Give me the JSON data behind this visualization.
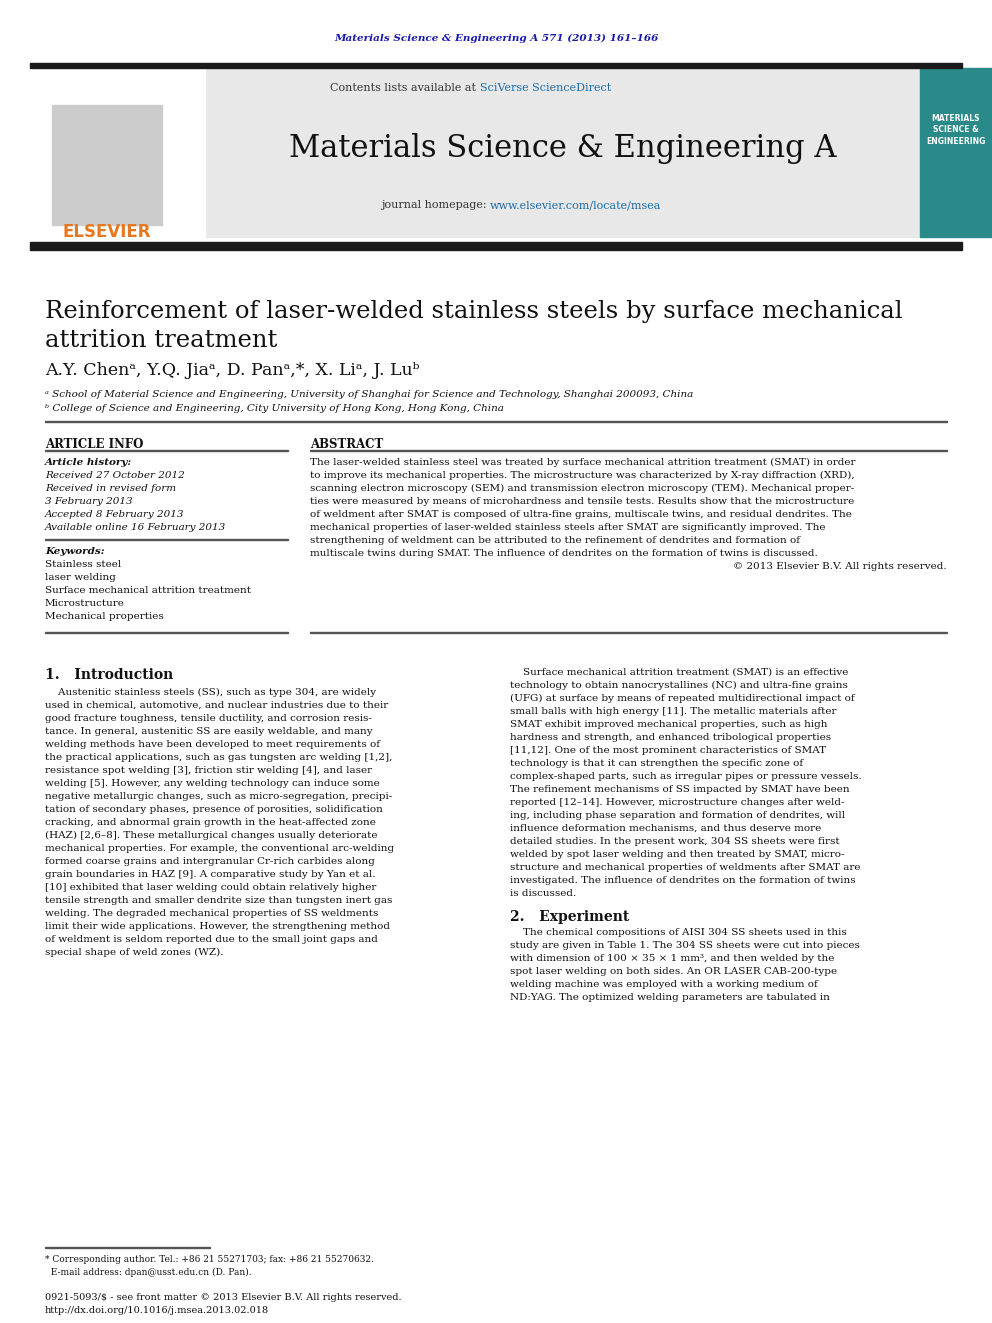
{
  "page_bg": "#ffffff",
  "header_journal_text": "Materials Science & Engineering A 571 (2013) 161–166",
  "header_journal_color": "#1a1aaa",
  "banner_bg": "#e8e8e8",
  "banner_sciverse_text": "SciVerse ScienceDirect",
  "banner_journal_name": "Materials Science & Engineering A",
  "blue_link_color": "#1a6caa",
  "title_main": "Reinforcement of laser-welded stainless steels by surface mechanical\nattrition treatment",
  "authors": "A.Y. Chenᵃ, Y.Q. Jiaᵃ, D. Panᵃ,*, X. Liᵃ, J. Luᵇ",
  "affil_a": "ᵃ School of Material Science and Engineering, University of Shanghai for Science and Technology, Shanghai 200093, China",
  "affil_b": "ᵇ College of Science and Engineering, City University of Hong Kong, Hong Kong, China",
  "section_article_info": "ARTICLE INFO",
  "section_abstract": "ABSTRACT",
  "article_history_label": "Article history:",
  "history_lines": [
    "Received 27 October 2012",
    "Received in revised form",
    "3 February 2013",
    "Accepted 8 February 2013",
    "Available online 16 February 2013"
  ],
  "keywords_label": "Keywords:",
  "keywords": [
    "Stainless steel",
    "laser welding",
    "Surface mechanical attrition treatment",
    "Microstructure",
    "Mechanical properties"
  ],
  "abstract_lines": [
    "The laser-welded stainless steel was treated by surface mechanical attrition treatment (SMAT) in order",
    "to improve its mechanical properties. The microstructure was characterized by X-ray diffraction (XRD),",
    "scanning electron microscopy (SEM) and transmission electron microscopy (TEM). Mechanical proper-",
    "ties were measured by means of microhardness and tensile tests. Results show that the microstructure",
    "of weldment after SMAT is composed of ultra-fine grains, multiscale twins, and residual dendrites. The",
    "mechanical properties of laser-welded stainless steels after SMAT are significantly improved. The",
    "strengthening of weldment can be attributed to the refinement of dendrites and formation of",
    "multiscale twins during SMAT. The influence of dendrites on the formation of twins is discussed.",
    "© 2013 Elsevier B.V. All rights reserved."
  ],
  "intro_heading": "1.   Introduction",
  "intro_left_lines": [
    "    Austenitic stainless steels (SS), such as type 304, are widely",
    "used in chemical, automotive, and nuclear industries due to their",
    "good fracture toughness, tensile ductility, and corrosion resis-",
    "tance. In general, austenitic SS are easily weldable, and many",
    "welding methods have been developed to meet requirements of",
    "the practical applications, such as gas tungsten arc welding [1,2],",
    "resistance spot welding [3], friction stir welding [4], and laser",
    "welding [5]. However, any welding technology can induce some",
    "negative metallurgic changes, such as micro-segregation, precipi-",
    "tation of secondary phases, presence of porosities, solidification",
    "cracking, and abnormal grain growth in the heat-affected zone",
    "(HAZ) [2,6–8]. These metallurgical changes usually deteriorate",
    "mechanical properties. For example, the conventional arc-welding",
    "formed coarse grains and intergranular Cr-rich carbides along",
    "grain boundaries in HAZ [9]. A comparative study by Yan et al.",
    "[10] exhibited that laser welding could obtain relatively higher",
    "tensile strength and smaller dendrite size than tungsten inert gas",
    "welding. The degraded mechanical properties of SS weldments",
    "limit their wide applications. However, the strengthening method",
    "of weldment is seldom reported due to the small joint gaps and",
    "special shape of weld zones (WZ)."
  ],
  "intro_right_lines": [
    "    Surface mechanical attrition treatment (SMAT) is an effective",
    "technology to obtain nanocrystallines (NC) and ultra-fine grains",
    "(UFG) at surface by means of repeated multidirectional impact of",
    "small balls with high energy [11]. The metallic materials after",
    "SMAT exhibit improved mechanical properties, such as high",
    "hardness and strength, and enhanced tribological properties",
    "[11,12]. One of the most prominent characteristics of SMAT",
    "technology is that it can strengthen the specific zone of",
    "complex-shaped parts, such as irregular pipes or pressure vessels.",
    "The refinement mechanisms of SS impacted by SMAT have been",
    "reported [12–14]. However, microstructure changes after weld-",
    "ing, including phase separation and formation of dendrites, will",
    "influence deformation mechanisms, and thus deserve more",
    "detailed studies. In the present work, 304 SS sheets were first",
    "welded by spot laser welding and then treated by SMAT, micro-",
    "structure and mechanical properties of weldments after SMAT are",
    "investigated. The influence of dendrites on the formation of twins",
    "is discussed."
  ],
  "section2_heading": "2.   Experiment",
  "section2_lines": [
    "    The chemical compositions of AISI 304 SS sheets used in this",
    "study are given in Table 1. The 304 SS sheets were cut into pieces",
    "with dimension of 100 × 35 × 1 mm³, and then welded by the",
    "spot laser welding on both sides. An OR LASER CAB-200-type",
    "welding machine was employed with a working medium of",
    "ND:YAG. The optimized welding parameters are tabulated in"
  ],
  "footnote_line1": "* Corresponding author. Tel.: +86 21 55271703; fax: +86 21 55270632.",
  "footnote_line2": "  E-mail address: dpan@usst.edu.cn (D. Pan).",
  "bottom_line1": "0921-5093/$ - see front matter © 2013 Elsevier B.V. All rights reserved.",
  "bottom_line2": "http://dx.doi.org/10.1016/j.msea.2013.02.018",
  "top_bar_color": "#1a1a1a",
  "mid_bar_color": "#1a1a1a",
  "orange_color": "#e87820"
}
